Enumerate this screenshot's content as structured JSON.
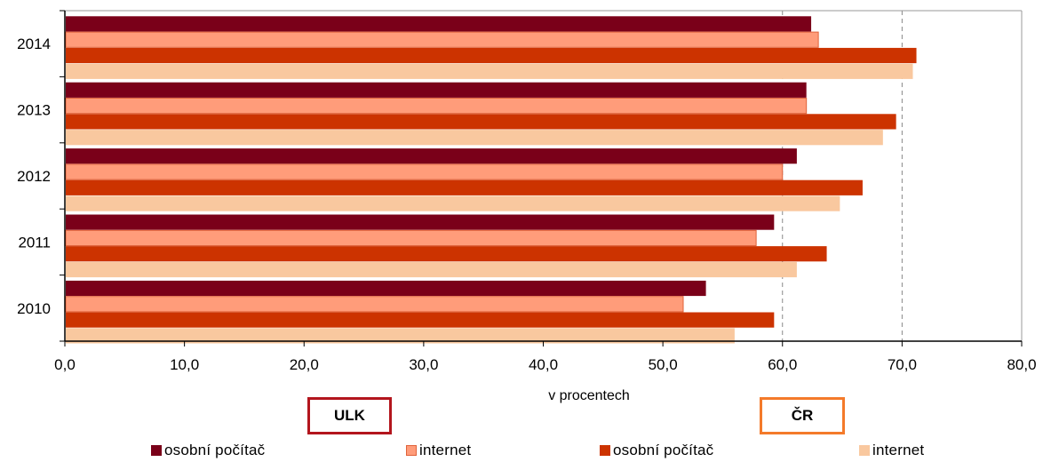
{
  "chart_data": {
    "type": "bar",
    "orientation": "horizontal",
    "categories": [
      "2014",
      "2013",
      "2012",
      "2011",
      "2010"
    ],
    "series": [
      {
        "name": "osobní počítač",
        "group": "ULK",
        "color": "#7a0019",
        "values": [
          62.4,
          62.0,
          61.2,
          59.3,
          53.6
        ]
      },
      {
        "name": "internet",
        "group": "ULK",
        "color": "#ff9c7a",
        "values": [
          63.0,
          62.0,
          60.0,
          57.8,
          51.7
        ]
      },
      {
        "name": "osobní počítač",
        "group": "ČR",
        "color": "#cc3300",
        "values": [
          71.2,
          69.5,
          66.7,
          63.7,
          59.3
        ]
      },
      {
        "name": "internet",
        "group": "ČR",
        "color": "#f9c89f",
        "values": [
          70.9,
          68.4,
          64.8,
          61.2,
          56.0
        ]
      }
    ],
    "xlabel": "v procentech",
    "xlim": [
      0,
      80
    ],
    "xticks": [
      "0,0",
      "10,0",
      "20,0",
      "30,0",
      "40,0",
      "50,0",
      "60,0",
      "70,0",
      "80,0"
    ],
    "gridlines_x": [
      60,
      70
    ],
    "group_labels": [
      "ULK",
      "ČR"
    ],
    "legend_position": "bottom"
  }
}
